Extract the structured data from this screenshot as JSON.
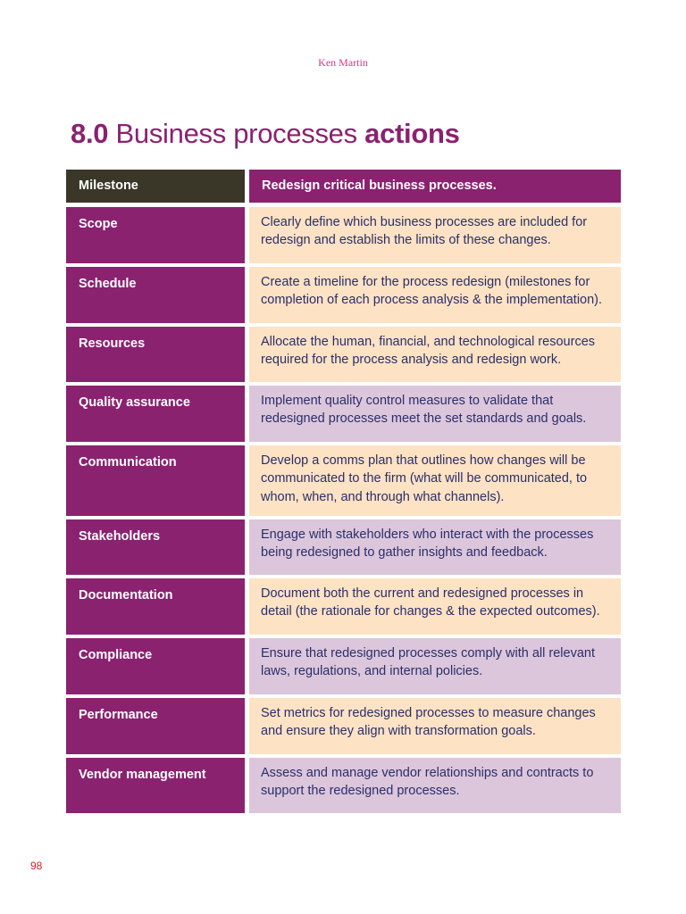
{
  "header": {
    "author": "Ken Martin"
  },
  "title": {
    "number": "8.0",
    "main": "Business processes",
    "emphasis": "actions"
  },
  "table": {
    "header": {
      "left": "Milestone",
      "right": "Redesign critical business processes."
    },
    "rows": [
      {
        "label": "Scope",
        "text": "Clearly define which business processes are included for redesign and establish the limits of these changes.",
        "tone": "peach",
        "height": 63
      },
      {
        "label": "Schedule",
        "text": "Create a timeline for the process redesign (milestones for completion of each process analysis & the implementation).",
        "tone": "peach",
        "height": 63
      },
      {
        "label": "Resources",
        "text": "Allocate the human, financial, and technological resources required for the process analysis and redesign work.",
        "tone": "peach",
        "height": 62
      },
      {
        "label": "Quality assurance",
        "text": "Implement quality control measures to validate that redesigned processes meet the set standards and goals.",
        "tone": "lilac",
        "height": 63
      },
      {
        "label": "Communication",
        "text": "Develop a comms plan that outlines how changes will be communicated to the firm (what will be communicated, to whom, when, and through what channels).",
        "tone": "peach",
        "height": 79
      },
      {
        "label": "Stakeholders",
        "text": "Engage with stakeholders who interact with the processes being redesigned to gather insights and feedback.",
        "tone": "lilac",
        "height": 62
      },
      {
        "label": "Documentation",
        "text": "Document both the current and redesigned processes in detail (the rationale for changes & the expected outcomes).",
        "tone": "peach",
        "height": 63
      },
      {
        "label": "Compliance",
        "text": "Ensure that redesigned processes comply with all relevant laws, regulations, and internal policies.",
        "tone": "lilac",
        "height": 63
      },
      {
        "label": "Performance",
        "text": "Set metrics for redesigned processes to measure changes and ensure they align with transformation goals.",
        "tone": "peach",
        "height": 63
      },
      {
        "label": "Vendor management",
        "text": "Assess and manage vendor relationships and contracts to support the redesigned processes.",
        "tone": "lilac",
        "height": 62
      }
    ]
  },
  "footer": {
    "page_number": "98"
  }
}
